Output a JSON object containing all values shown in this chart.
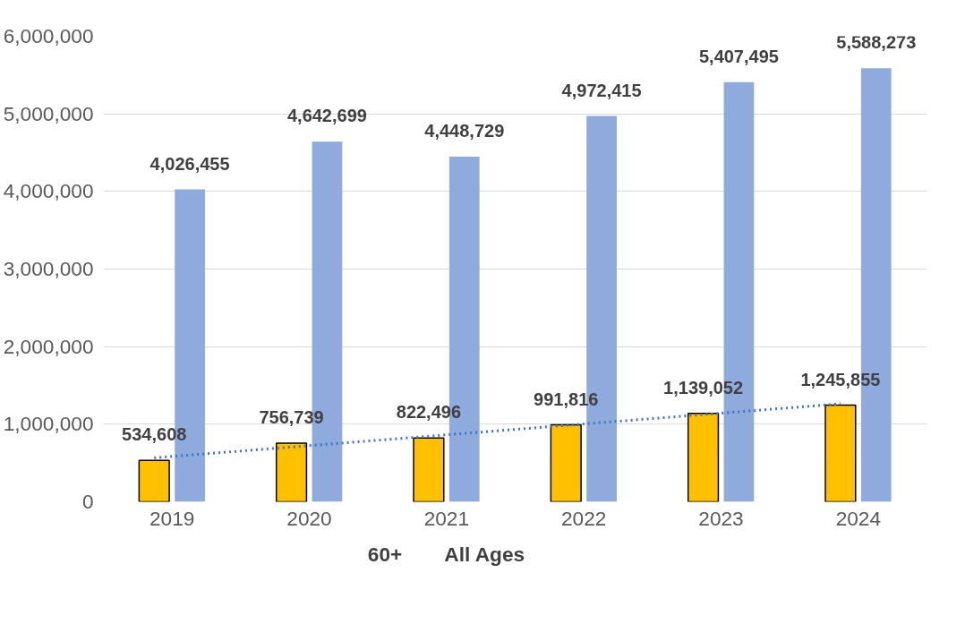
{
  "chart_data": {
    "type": "bar",
    "categories": [
      "2019",
      "2020",
      "2021",
      "2022",
      "2023",
      "2024"
    ],
    "series": [
      {
        "name": "60+",
        "color": "#ffc000",
        "values": [
          534608,
          756739,
          822496,
          991816,
          1139052,
          1245855
        ],
        "value_labels": [
          "534,608",
          "756,739",
          "822,496",
          "991,816",
          "1,139,052",
          "1,245,855"
        ]
      },
      {
        "name": "All Ages",
        "color": "#8faadc",
        "values": [
          4026455,
          4642699,
          4448729,
          4972415,
          5407495,
          5588273
        ],
        "value_labels": [
          "4,026,455",
          "4,642,699",
          "4,448,729",
          "4,972,415",
          "5,407,495",
          "5,588,273"
        ]
      },
      {
        "type": "line",
        "color": "#4472c4",
        "line_style": "dotted",
        "values": [
          567000,
          706000,
          845000,
          985000,
          1124000,
          1263000
        ]
      }
    ],
    "ylim": [
      0,
      6000000
    ],
    "yticks": [
      {
        "value": 0,
        "label": "0"
      },
      {
        "value": 1000000,
        "label": "1,000,000"
      },
      {
        "value": 2000000,
        "label": "2,000,000"
      },
      {
        "value": 3000000,
        "label": "3,000,000"
      },
      {
        "value": 4000000,
        "label": "4,000,000"
      },
      {
        "value": 5000000,
        "label": "5,000,000"
      },
      {
        "value": 6000000,
        "label": "6,000,000"
      }
    ],
    "grid": "y",
    "legend": "bottom"
  }
}
